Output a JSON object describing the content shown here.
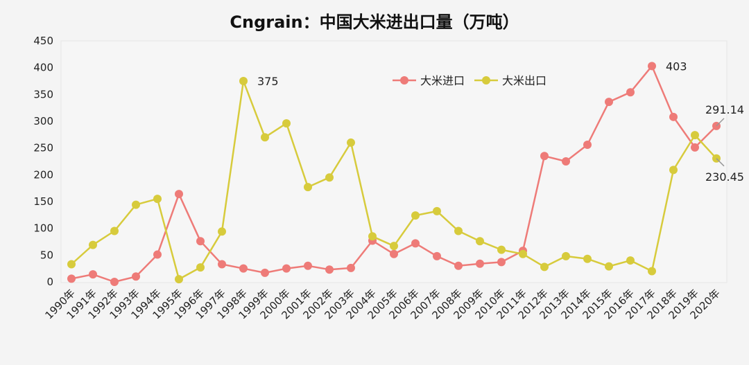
{
  "chart_data": {
    "type": "line",
    "title": "Cngrain：中国大米进出口量（万吨）",
    "xlabel": "",
    "ylabel": "",
    "ylim": [
      0,
      450
    ],
    "yticks": [
      0,
      50,
      100,
      150,
      200,
      250,
      300,
      350,
      400,
      450
    ],
    "grid": false,
    "legend_position": "top-center",
    "categories": [
      "1990年",
      "1991年",
      "1992年",
      "1993年",
      "1994年",
      "1995年",
      "1996年",
      "1997年",
      "1998年",
      "1999年",
      "2000年",
      "2001年",
      "2002年",
      "2003年",
      "2004年",
      "2005年",
      "2006年",
      "2007年",
      "2008年",
      "2009年",
      "2010年",
      "2011年",
      "2012年",
      "2013年",
      "2014年",
      "2015年",
      "2016年",
      "2017年",
      "2018年",
      "2019年",
      "2020年"
    ],
    "series": [
      {
        "name": "大米进口",
        "color": "#ee7b78",
        "values": [
          6,
          14,
          0,
          10,
          51,
          164,
          76,
          33,
          25,
          17,
          25,
          30,
          23,
          26,
          77,
          52,
          72,
          48,
          30,
          34,
          37,
          58,
          235,
          225,
          256,
          336,
          354,
          403,
          308,
          251,
          291.14
        ]
      },
      {
        "name": "大米出口",
        "color": "#d7cb3c",
        "values": [
          33,
          69,
          95,
          144,
          155,
          5,
          27,
          94,
          375,
          270,
          296,
          177,
          195,
          260,
          85,
          67,
          124,
          132,
          95,
          76,
          60,
          52,
          28,
          48,
          43,
          29,
          40,
          20,
          209,
          274,
          230.45
        ]
      }
    ],
    "annotations": [
      {
        "text": "375",
        "series": 1,
        "index": 8
      },
      {
        "text": "403",
        "series": 0,
        "index": 27
      },
      {
        "text": "291.14",
        "series": 0,
        "index": 30
      },
      {
        "text": "230.45",
        "series": 1,
        "index": 30
      }
    ]
  }
}
